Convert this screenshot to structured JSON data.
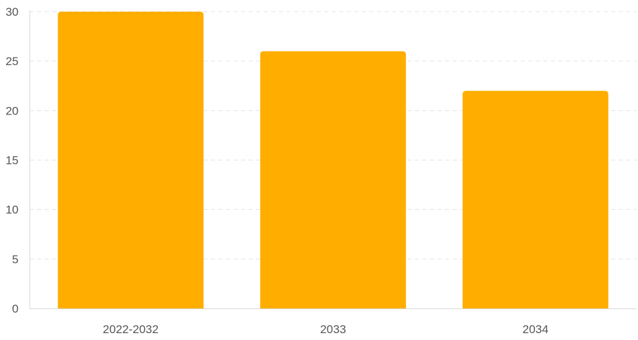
{
  "chart_data": {
    "type": "bar",
    "categories": [
      "2022-2032",
      "2033",
      "2034"
    ],
    "values": [
      30,
      26,
      22
    ],
    "title": "",
    "xlabel": "",
    "ylabel": "",
    "ylim": [
      0,
      30
    ],
    "yticks": [
      0,
      5,
      10,
      15,
      20,
      25,
      30
    ],
    "grid": true,
    "bar_color": "#FFAE00"
  }
}
